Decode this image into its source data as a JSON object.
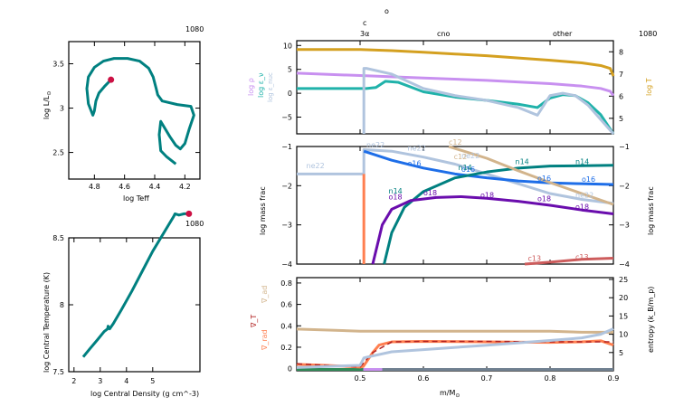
{
  "model_number": "1080",
  "colors": {
    "teal": "#008080",
    "red_marker": "#cc1144",
    "logT": "#d4a020",
    "logRho": "#c890f0",
    "eps_nuc": "#b0c4de",
    "eps_nu": "#20b2aa",
    "ne22": "#b0c4de",
    "o16": "#1e6ee8",
    "n14": "#008080",
    "c12": "#d2b48c",
    "o18": "#6a0dad",
    "c13": "#cd5c5c",
    "he4_edge": "#ff7f50",
    "grad_ad": "#d2b48c",
    "grad_T": "#b22222",
    "grad_rad": "#ff7f50",
    "entropy": "#b0c4de"
  },
  "chart_data": [
    {
      "id": "hr",
      "type": "line",
      "title": "",
      "xlabel": "log Teff",
      "ylabel": "log L/L_sun",
      "xlim": [
        4.97,
        4.1
      ],
      "ylim": [
        2.2,
        3.75
      ],
      "xticks": [
        "4.8",
        "4.6",
        "4.4",
        "4.2"
      ],
      "yticks": [
        "2.5",
        "3",
        "3.5"
      ],
      "x": [
        4.69,
        4.73,
        4.77,
        4.79,
        4.8,
        4.81,
        4.84,
        4.85,
        4.84,
        4.8,
        4.74,
        4.67,
        4.58,
        4.5,
        4.44,
        4.41,
        4.39,
        4.38,
        4.35,
        4.25,
        4.16,
        4.14,
        4.17,
        4.2,
        4.23,
        4.26,
        4.3,
        4.36,
        4.37,
        4.36,
        4.32,
        4.26
      ],
      "y": [
        3.32,
        3.25,
        3.17,
        3.08,
        2.97,
        2.92,
        3.05,
        3.22,
        3.35,
        3.46,
        3.53,
        3.56,
        3.56,
        3.53,
        3.45,
        3.35,
        3.22,
        3.15,
        3.08,
        3.04,
        3.02,
        2.92,
        2.77,
        2.6,
        2.54,
        2.58,
        2.68,
        2.85,
        2.7,
        2.52,
        2.45,
        2.37
      ],
      "marker": {
        "x": 4.69,
        "y": 3.32
      }
    },
    {
      "id": "trho",
      "type": "line",
      "xlabel": "log Central Density (g cm^-3)",
      "ylabel": "log Central Temperature (K)",
      "xlim": [
        1.8,
        6.8
      ],
      "ylim": [
        7.5,
        8.5
      ],
      "xticks": [
        "2",
        "3",
        "4",
        "5"
      ],
      "yticks": [
        "7.5",
        "8",
        "8.5"
      ],
      "x": [
        2.35,
        2.6,
        2.9,
        3.15,
        3.28,
        3.3,
        3.36,
        3.5,
        3.8,
        4.2,
        4.6,
        5.0,
        5.4,
        5.8,
        5.85,
        6.0,
        6.2,
        6.38
      ],
      "y": [
        7.61,
        7.67,
        7.74,
        7.8,
        7.82,
        7.84,
        7.82,
        7.86,
        7.96,
        8.1,
        8.25,
        8.4,
        8.53,
        8.66,
        8.68,
        8.67,
        8.68,
        8.68
      ],
      "marker": {
        "x": 6.38,
        "y": 8.68
      }
    },
    {
      "id": "profile-top",
      "type": "line",
      "xlim": [
        0.4,
        0.9
      ],
      "ylim": [
        -8.5,
        11
      ],
      "y2lim": [
        4.3,
        8.5
      ],
      "yticks": [
        "-5",
        "0",
        "5",
        "10"
      ],
      "y2ticks": [
        "5",
        "6",
        "7",
        "8"
      ],
      "ylabels": [
        "log ρ",
        "log ε_ν",
        "log ε_nuc"
      ],
      "y2label": "log T",
      "top_labels": {
        "c": "c",
        "o": "o",
        "regions": [
          "3α",
          "cno",
          "other"
        ]
      },
      "series": [
        {
          "name": "log T",
          "axis": "y2",
          "x": [
            0.4,
            0.5,
            0.55,
            0.6,
            0.65,
            0.7,
            0.75,
            0.8,
            0.85,
            0.88,
            0.895,
            0.9
          ],
          "y": [
            8.1,
            8.1,
            8.05,
            7.98,
            7.9,
            7.82,
            7.72,
            7.62,
            7.5,
            7.38,
            7.25,
            6.9
          ]
        },
        {
          "name": "log rho",
          "axis": "y",
          "x": [
            0.4,
            0.5,
            0.6,
            0.7,
            0.8,
            0.85,
            0.88,
            0.895,
            0.9
          ],
          "y": [
            4.2,
            3.7,
            3.2,
            2.7,
            2.0,
            1.5,
            1.0,
            0.4,
            -0.5
          ]
        },
        {
          "name": "log eps_nu",
          "axis": "y",
          "x": [
            0.4,
            0.5,
            0.51,
            0.525,
            0.54,
            0.56,
            0.6,
            0.65,
            0.7,
            0.75,
            0.78,
            0.8,
            0.82,
            0.84,
            0.86,
            0.88,
            0.9
          ],
          "y": [
            1.0,
            1.0,
            1.0,
            1.2,
            2.5,
            2.3,
            0.3,
            -0.8,
            -1.5,
            -2.3,
            -3.0,
            -1.0,
            -0.3,
            -0.5,
            -2.0,
            -4.5,
            -8.5
          ]
        },
        {
          "name": "log eps_nuc",
          "axis": "y",
          "x": [
            0.506,
            0.506,
            0.51,
            0.55,
            0.6,
            0.65,
            0.7,
            0.75,
            0.78,
            0.8,
            0.82,
            0.84,
            0.86,
            0.88,
            0.9
          ],
          "y": [
            -8.5,
            5.2,
            5.2,
            4.0,
            1.0,
            -0.5,
            -1.5,
            -3.0,
            -4.6,
            -0.5,
            0.0,
            -0.5,
            -2.5,
            -5.5,
            -8.5
          ]
        }
      ]
    },
    {
      "id": "profile-mid",
      "type": "line",
      "xlim": [
        0.4,
        0.9
      ],
      "ylim": [
        -4,
        -1
      ],
      "ylabel": "log mass frac",
      "y2label": "log mass frac",
      "yticks": [
        "-4",
        "-3",
        "-2",
        "-1"
      ],
      "series": [
        {
          "name": "ne22",
          "x": [
            0.4,
            0.506,
            0.506,
            0.55,
            0.6,
            0.65,
            0.7,
            0.75,
            0.8,
            0.85,
            0.9
          ],
          "y": [
            -1.7,
            -1.7,
            -1.08,
            -1.12,
            -1.27,
            -1.45,
            -1.7,
            -1.95,
            -2.2,
            -2.35,
            -2.45
          ]
        },
        {
          "name": "o16",
          "x": [
            0.506,
            0.55,
            0.6,
            0.65,
            0.7,
            0.75,
            0.8,
            0.85,
            0.9
          ],
          "y": [
            -1.12,
            -1.35,
            -1.55,
            -1.7,
            -1.8,
            -1.88,
            -1.93,
            -1.95,
            -1.97
          ]
        },
        {
          "name": "n14",
          "x": [
            0.538,
            0.55,
            0.57,
            0.6,
            0.65,
            0.7,
            0.75,
            0.8,
            0.9
          ],
          "y": [
            -4.0,
            -3.2,
            -2.55,
            -2.15,
            -1.8,
            -1.65,
            -1.55,
            -1.5,
            -1.48
          ]
        },
        {
          "name": "c12",
          "x": [
            0.64,
            0.65,
            0.7,
            0.75,
            0.8,
            0.85,
            0.9
          ],
          "y": [
            -1.0,
            -1.05,
            -1.3,
            -1.62,
            -1.92,
            -2.2,
            -2.48
          ]
        },
        {
          "name": "o18",
          "x": [
            0.52,
            0.535,
            0.55,
            0.58,
            0.62,
            0.66,
            0.7,
            0.75,
            0.8,
            0.85,
            0.9
          ],
          "y": [
            -4.0,
            -3.0,
            -2.6,
            -2.38,
            -2.3,
            -2.28,
            -2.32,
            -2.4,
            -2.5,
            -2.62,
            -2.72
          ]
        },
        {
          "name": "c13",
          "x": [
            0.76,
            0.8,
            0.85,
            0.9
          ],
          "y": [
            -4.0,
            -3.95,
            -3.88,
            -3.85
          ]
        },
        {
          "name": "he4-edge",
          "x": [
            0.506,
            0.506
          ],
          "y": [
            -1.7,
            -4.0
          ]
        }
      ],
      "annotations": [
        "ne22",
        "ne22",
        "ne22",
        "ne22",
        "ne22",
        "o16",
        "o16",
        "o16",
        "o16",
        "n14",
        "n14",
        "n14",
        "n14",
        "c12",
        "c12",
        "o18",
        "o18",
        "o18",
        "o18",
        "o18",
        "c13",
        "c13"
      ]
    },
    {
      "id": "profile-bottom",
      "type": "line",
      "xlim": [
        0.4,
        0.9
      ],
      "ylim": [
        -0.02,
        0.85
      ],
      "y2lim": [
        0,
        25.5
      ],
      "xlabel": "m/M_sun",
      "xticks": [
        "0.5",
        "0.6",
        "0.7",
        "0.8",
        "0.9"
      ],
      "yticks": [
        "0",
        "0.2",
        "0.4",
        "0.6",
        "0.8"
      ],
      "y2ticks": [
        "5",
        "10",
        "15",
        "20",
        "25"
      ],
      "ylabels": [
        "∇_ad",
        "∇_T",
        "∇_rad"
      ],
      "y2label": "entropy (k_B/m_p)",
      "series": [
        {
          "name": "grad_ad",
          "x": [
            0.4,
            0.45,
            0.5,
            0.6,
            0.7,
            0.8,
            0.85,
            0.9
          ],
          "y": [
            0.37,
            0.36,
            0.35,
            0.35,
            0.35,
            0.35,
            0.34,
            0.34
          ]
        },
        {
          "name": "grad_rad",
          "x": [
            0.4,
            0.45,
            0.5,
            0.505,
            0.52,
            0.53,
            0.55,
            0.6,
            0.7,
            0.8,
            0.85,
            0.88,
            0.9
          ],
          "y": [
            0.04,
            0.03,
            0.015,
            0.02,
            0.15,
            0.22,
            0.25,
            0.255,
            0.25,
            0.245,
            0.25,
            0.26,
            0.22
          ]
        },
        {
          "name": "grad_T",
          "x": [
            0.4,
            0.5,
            0.52,
            0.55,
            0.6,
            0.7,
            0.8,
            0.9
          ],
          "y": [
            0.045,
            0.015,
            0.15,
            0.25,
            0.255,
            0.255,
            0.25,
            0.25
          ]
        },
        {
          "name": "entropy",
          "axis": "y2",
          "x": [
            0.4,
            0.5,
            0.506,
            0.51,
            0.55,
            0.6,
            0.7,
            0.8,
            0.85,
            0.88,
            0.9
          ],
          "y": [
            0.9,
            1.5,
            3.5,
            3.7,
            5.2,
            5.8,
            7.0,
            8.3,
            9.0,
            10.0,
            11.5
          ]
        }
      ],
      "bottom_bars": [
        {
          "x0": 0.4,
          "x1": 0.505,
          "color": "#2e8b57"
        },
        {
          "x0": 0.505,
          "x1": 0.535,
          "color": "#c890f0"
        },
        {
          "x0": 0.535,
          "x1": 0.9,
          "color": "#708090"
        }
      ]
    }
  ]
}
